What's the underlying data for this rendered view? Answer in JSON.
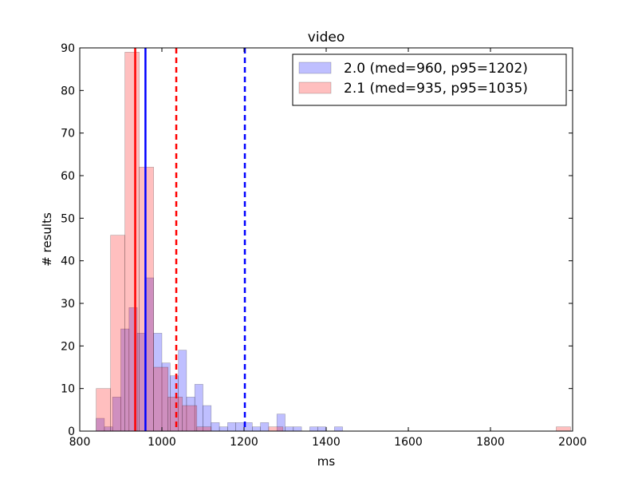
{
  "chart_data": {
    "type": "histogram",
    "title": "video",
    "xlabel": "ms",
    "ylabel": "# results",
    "xlim": [
      800,
      2000
    ],
    "ylim": [
      0,
      90
    ],
    "xticks": [
      "800",
      "1000",
      "1200",
      "1400",
      "1600",
      "1800",
      "2000"
    ],
    "yticks": [
      "0",
      "10",
      "20",
      "30",
      "40",
      "50",
      "60",
      "70",
      "80",
      "90"
    ],
    "legend_position": "top-right",
    "grid": false,
    "series": [
      {
        "name": "2.0 (med=960, p95=1202)",
        "color": "#0000ff",
        "opacity": 0.25,
        "median": 960,
        "p95": 1202,
        "bins": [
          {
            "x0": 840,
            "x1": 860,
            "count": 3
          },
          {
            "x0": 860,
            "x1": 880,
            "count": 1
          },
          {
            "x0": 880,
            "x1": 900,
            "count": 8
          },
          {
            "x0": 900,
            "x1": 920,
            "count": 24
          },
          {
            "x0": 920,
            "x1": 940,
            "count": 29
          },
          {
            "x0": 940,
            "x1": 960,
            "count": 23
          },
          {
            "x0": 960,
            "x1": 980,
            "count": 36
          },
          {
            "x0": 980,
            "x1": 1000,
            "count": 23
          },
          {
            "x0": 1000,
            "x1": 1020,
            "count": 16
          },
          {
            "x0": 1020,
            "x1": 1040,
            "count": 13
          },
          {
            "x0": 1040,
            "x1": 1060,
            "count": 19
          },
          {
            "x0": 1060,
            "x1": 1080,
            "count": 8
          },
          {
            "x0": 1080,
            "x1": 1100,
            "count": 11
          },
          {
            "x0": 1100,
            "x1": 1120,
            "count": 6
          },
          {
            "x0": 1120,
            "x1": 1140,
            "count": 2
          },
          {
            "x0": 1140,
            "x1": 1160,
            "count": 1
          },
          {
            "x0": 1160,
            "x1": 1180,
            "count": 2
          },
          {
            "x0": 1180,
            "x1": 1200,
            "count": 2
          },
          {
            "x0": 1200,
            "x1": 1220,
            "count": 2
          },
          {
            "x0": 1220,
            "x1": 1240,
            "count": 1
          },
          {
            "x0": 1240,
            "x1": 1260,
            "count": 2
          },
          {
            "x0": 1260,
            "x1": 1280,
            "count": 0
          },
          {
            "x0": 1280,
            "x1": 1300,
            "count": 4
          },
          {
            "x0": 1300,
            "x1": 1320,
            "count": 1
          },
          {
            "x0": 1320,
            "x1": 1340,
            "count": 1
          },
          {
            "x0": 1360,
            "x1": 1380,
            "count": 1
          },
          {
            "x0": 1380,
            "x1": 1400,
            "count": 1
          },
          {
            "x0": 1420,
            "x1": 1440,
            "count": 1
          }
        ]
      },
      {
        "name": "2.1 (med=935, p95=1035)",
        "color": "#ff0000",
        "opacity": 0.25,
        "median": 935,
        "p95": 1035,
        "bins": [
          {
            "x0": 840,
            "x1": 875,
            "count": 10
          },
          {
            "x0": 875,
            "x1": 910,
            "count": 46
          },
          {
            "x0": 910,
            "x1": 945,
            "count": 89
          },
          {
            "x0": 945,
            "x1": 980,
            "count": 62
          },
          {
            "x0": 980,
            "x1": 1015,
            "count": 15
          },
          {
            "x0": 1015,
            "x1": 1050,
            "count": 8
          },
          {
            "x0": 1050,
            "x1": 1085,
            "count": 6
          },
          {
            "x0": 1085,
            "x1": 1120,
            "count": 1
          },
          {
            "x0": 1120,
            "x1": 1155,
            "count": 0
          },
          {
            "x0": 1155,
            "x1": 1190,
            "count": 0
          },
          {
            "x0": 1190,
            "x1": 1225,
            "count": 0
          },
          {
            "x0": 1225,
            "x1": 1260,
            "count": 0
          },
          {
            "x0": 1260,
            "x1": 1295,
            "count": 1
          },
          {
            "x0": 1960,
            "x1": 1995,
            "count": 1
          }
        ]
      }
    ]
  }
}
